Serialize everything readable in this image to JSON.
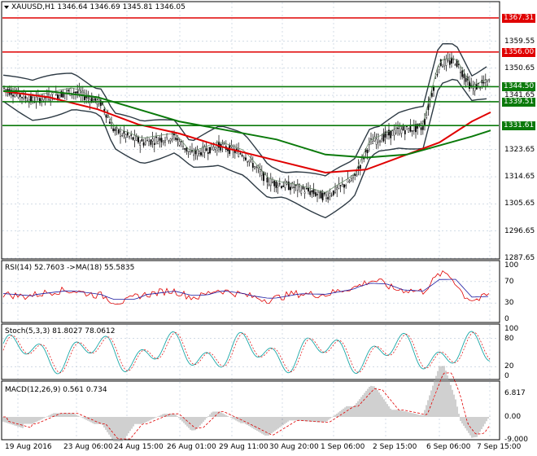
{
  "symbol": "XAUUSD,H1",
  "ohlc": [
    "1346.64",
    "1346.69",
    "1345.81",
    "1346.05"
  ],
  "colors": {
    "grid": "#b7c6d8",
    "frame": "#000000",
    "red_line": "#e00000",
    "green_line": "#0b7a0b",
    "rsi": "#e00000",
    "rsi_ma": "#1a1aa0",
    "stoch": "#1aa7a7",
    "macd_hist": "#c0c0c0",
    "macd_signal": "#e00000",
    "candles": "#000000",
    "bollinger": "#2d3a44"
  },
  "price_axis": [
    "1367.31",
    "1359.55",
    "1356.00",
    "1350.65",
    "1344.50",
    "1341.65",
    "1339.51",
    "1331.61",
    "1323.65",
    "1314.65",
    "1305.65",
    "1296.65",
    "1287.65"
  ],
  "price_tags": [
    {
      "value": "1367.31",
      "color": "#e00000"
    },
    {
      "value": "1356.00",
      "color": "#e00000"
    },
    {
      "value": "1344.50",
      "color": "#0b7a0b"
    },
    {
      "value": "1339.51",
      "color": "#0b7a0b"
    },
    {
      "value": "1331.61",
      "color": "#0b7a0b"
    }
  ],
  "rsi": {
    "title": "RSI(14) 52.7603",
    "ma_label": "->MA(18) 55.5835",
    "axis": [
      "100",
      "70",
      "30",
      "0"
    ]
  },
  "stoch": {
    "title": "Stoch(5,3,3) 81.8027 78.0612",
    "axis": [
      "100",
      "80",
      "20",
      "0"
    ]
  },
  "macd": {
    "title": "MACD(12,26,9) 0.561 0.734",
    "axis": [
      "6.817",
      "0.00",
      "-9.000"
    ]
  },
  "time_axis": [
    "19 Aug 2016",
    "23 Aug 06:00",
    "24 Aug 15:00",
    "26 Aug 01:00",
    "29 Aug 11:00",
    "30 Aug 20:00",
    "1 Sep 06:00",
    "2 Sep 15:00",
    "6 Sep 06:00",
    "7 Sep 15:00"
  ]
}
